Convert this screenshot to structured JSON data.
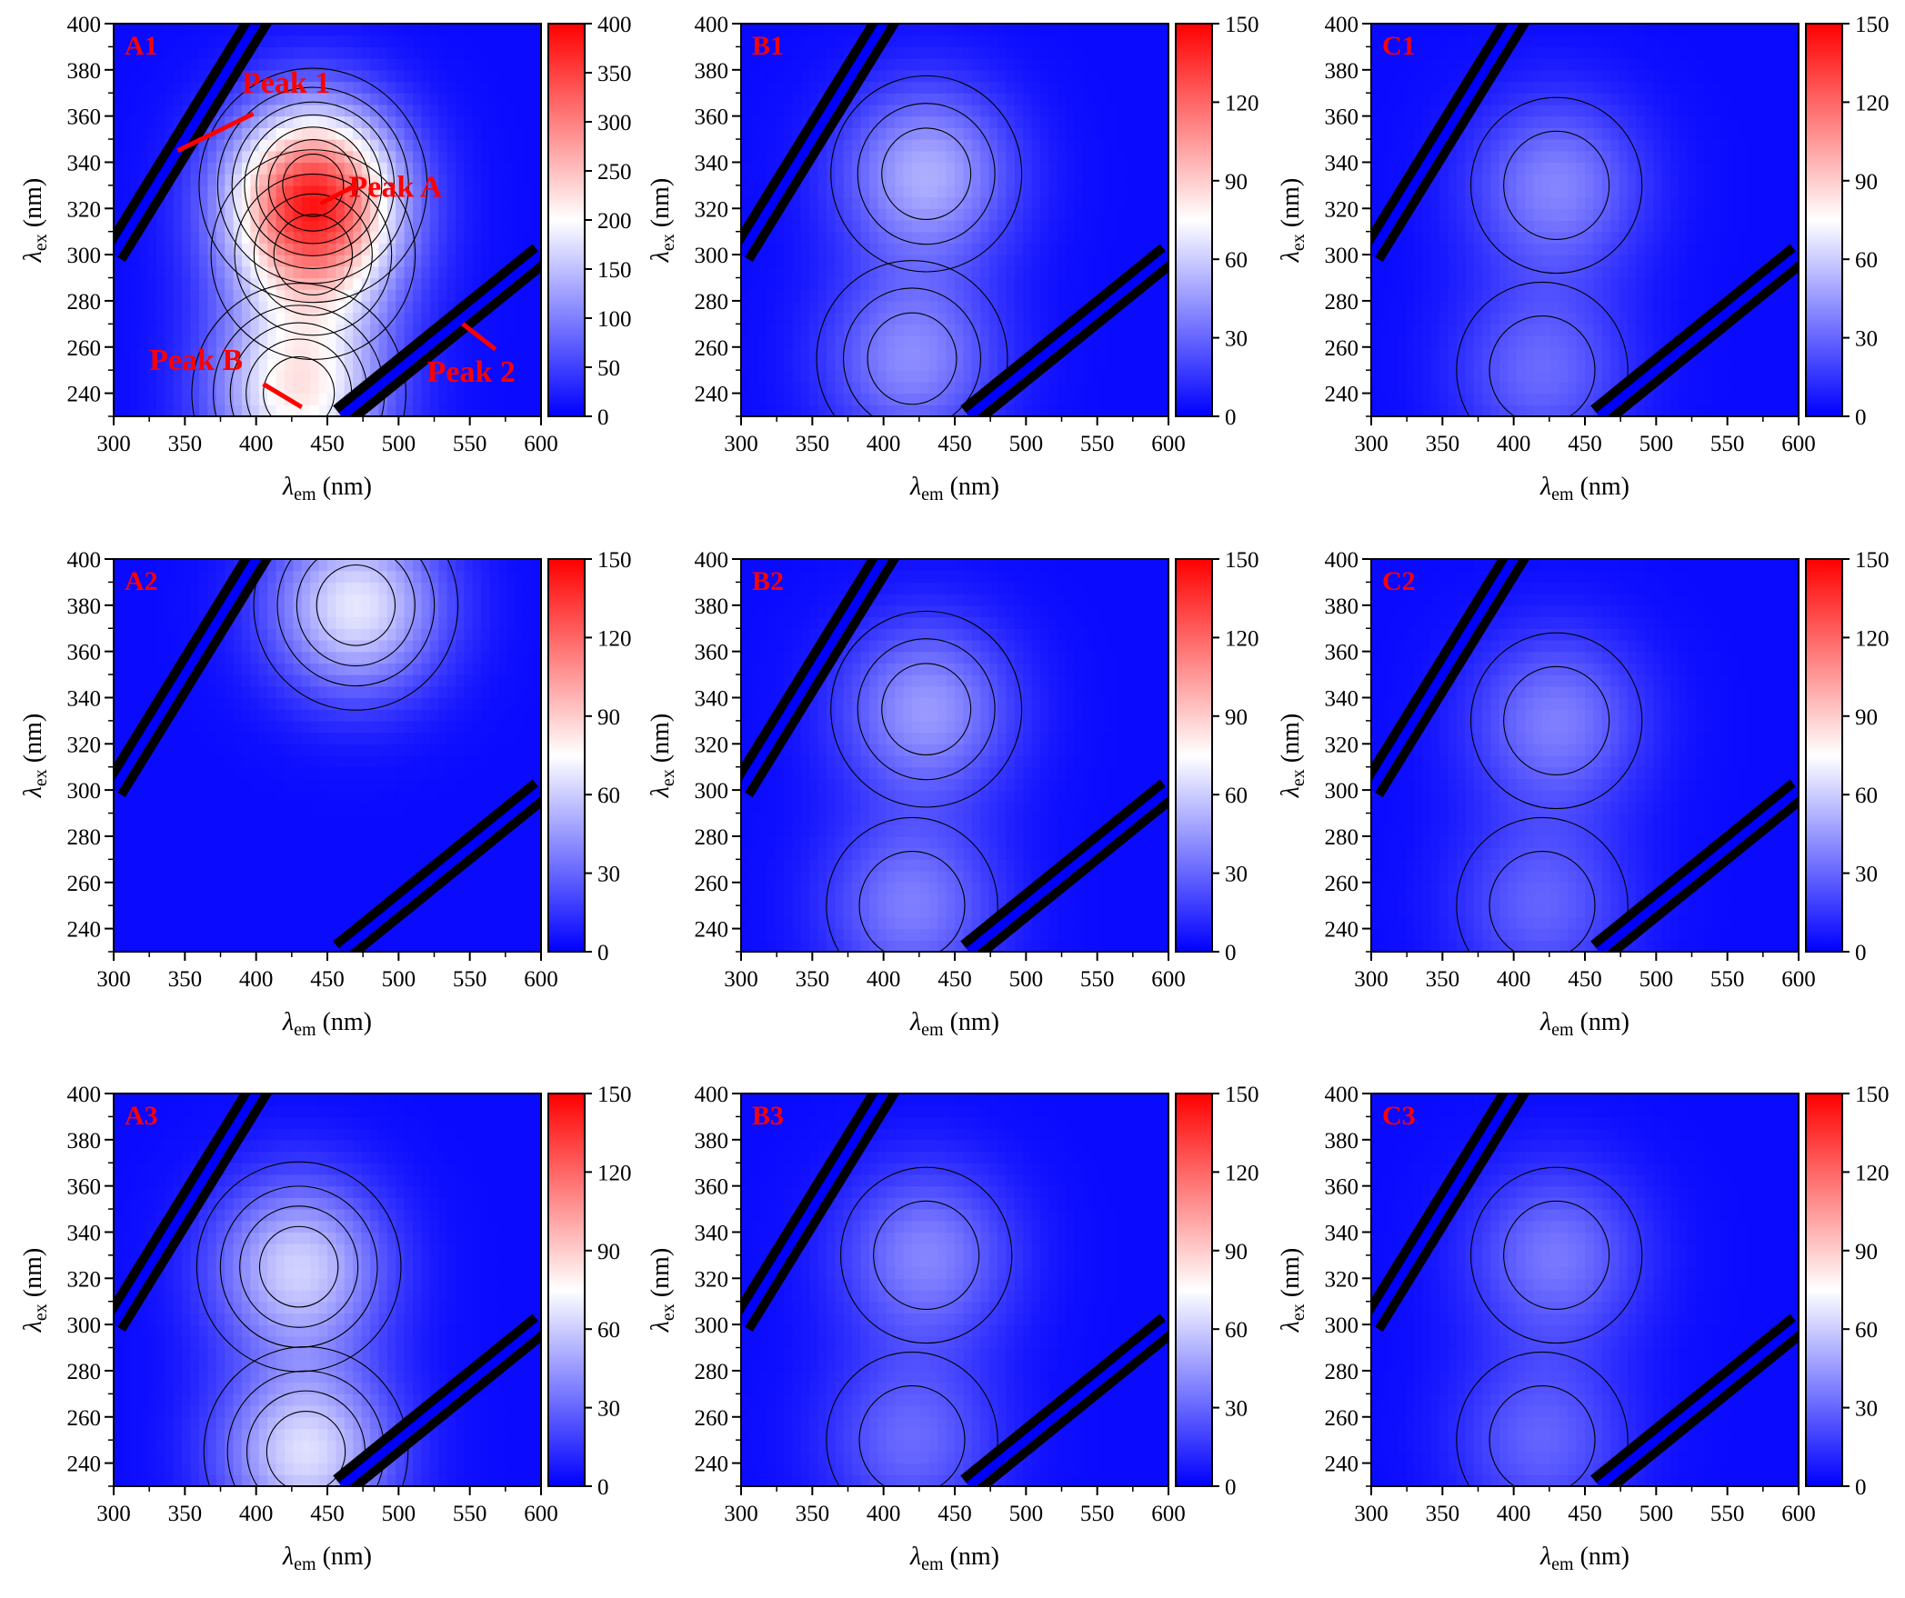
{
  "chart_data": [
    {
      "panel": "A1",
      "type": "heatmap",
      "xlabel": "λem (nm)",
      "ylabel": "λex (nm)",
      "xlim": [
        300,
        600
      ],
      "ylim": [
        230,
        400
      ],
      "xticks": [
        300,
        350,
        400,
        450,
        500,
        550,
        600
      ],
      "yticks": [
        240,
        260,
        280,
        300,
        320,
        340,
        360,
        380,
        400
      ],
      "colorbar": {
        "min": 0,
        "max": 400,
        "ticks": [
          0,
          50,
          100,
          150,
          200,
          250,
          300,
          350,
          400
        ]
      },
      "peaks": [
        {
          "em": 440,
          "ex": 330,
          "intensity": 280
        },
        {
          "em": 430,
          "ex": 240,
          "intensity": 200
        },
        {
          "em": 440,
          "ex": 300,
          "intensity": 150
        }
      ],
      "annotations": [
        {
          "text": "Peak 1",
          "x": 390,
          "y": 370,
          "x1": 398,
          "y1": 361,
          "x2": 345,
          "y2": 345
        },
        {
          "text": "Peak A",
          "x": 465,
          "y": 325,
          "x1": 470,
          "y1": 330,
          "x2": 445,
          "y2": 322
        },
        {
          "text": "Peak B",
          "x": 325,
          "y": 250,
          "x1": 405,
          "y1": 244,
          "x2": 432,
          "y2": 234
        },
        {
          "text": "Peak 2",
          "x": 520,
          "y": 245,
          "x1": 568,
          "y1": 259,
          "x2": 545,
          "y2": 270
        }
      ]
    },
    {
      "panel": "B1",
      "type": "heatmap",
      "xlabel": "λem (nm)",
      "ylabel": "λex (nm)",
      "xlim": [
        300,
        600
      ],
      "ylim": [
        230,
        400
      ],
      "xticks": [
        300,
        350,
        400,
        450,
        500,
        550,
        600
      ],
      "yticks": [
        240,
        260,
        280,
        300,
        320,
        340,
        360,
        380,
        400
      ],
      "colorbar": {
        "min": 0,
        "max": 150,
        "ticks": [
          0,
          30,
          60,
          90,
          120,
          150
        ]
      },
      "peaks": [
        {
          "em": 430,
          "ex": 335,
          "intensity": 48
        },
        {
          "em": 420,
          "ex": 255,
          "intensity": 38
        }
      ],
      "annotations": []
    },
    {
      "panel": "C1",
      "type": "heatmap",
      "xlabel": "λem (nm)",
      "ylabel": "λex (nm)",
      "xlim": [
        300,
        600
      ],
      "ylim": [
        230,
        400
      ],
      "xticks": [
        300,
        350,
        400,
        450,
        500,
        550,
        600
      ],
      "yticks": [
        240,
        260,
        280,
        300,
        320,
        340,
        360,
        380,
        400
      ],
      "colorbar": {
        "min": 0,
        "max": 150,
        "ticks": [
          0,
          30,
          60,
          90,
          120,
          150
        ]
      },
      "peaks": [
        {
          "em": 430,
          "ex": 330,
          "intensity": 36
        },
        {
          "em": 420,
          "ex": 250,
          "intensity": 28
        }
      ],
      "annotations": []
    },
    {
      "panel": "A2",
      "type": "heatmap",
      "xlabel": "λem (nm)",
      "ylabel": "λex (nm)",
      "xlim": [
        300,
        600
      ],
      "ylim": [
        230,
        400
      ],
      "xticks": [
        300,
        350,
        400,
        450,
        500,
        550,
        600
      ],
      "yticks": [
        240,
        260,
        280,
        300,
        320,
        340,
        360,
        380,
        400
      ],
      "colorbar": {
        "min": 0,
        "max": 150,
        "ticks": [
          0,
          30,
          60,
          90,
          120,
          150
        ]
      },
      "peaks": [
        {
          "em": 470,
          "ex": 380,
          "intensity": 65
        }
      ],
      "annotations": []
    },
    {
      "panel": "B2",
      "type": "heatmap",
      "xlabel": "λem (nm)",
      "ylabel": "λex (nm)",
      "xlim": [
        300,
        600
      ],
      "ylim": [
        230,
        400
      ],
      "xticks": [
        300,
        350,
        400,
        450,
        500,
        550,
        600
      ],
      "yticks": [
        240,
        260,
        280,
        300,
        320,
        340,
        360,
        380,
        400
      ],
      "colorbar": {
        "min": 0,
        "max": 150,
        "ticks": [
          0,
          30,
          60,
          90,
          120,
          150
        ]
      },
      "peaks": [
        {
          "em": 430,
          "ex": 335,
          "intensity": 42
        },
        {
          "em": 420,
          "ex": 250,
          "intensity": 34
        }
      ],
      "annotations": []
    },
    {
      "panel": "C2",
      "type": "heatmap",
      "xlabel": "λem (nm)",
      "ylabel": "λex (nm)",
      "xlim": [
        300,
        600
      ],
      "ylim": [
        230,
        400
      ],
      "xticks": [
        300,
        350,
        400,
        450,
        500,
        550,
        600
      ],
      "yticks": [
        240,
        260,
        280,
        300,
        320,
        340,
        360,
        380,
        400
      ],
      "colorbar": {
        "min": 0,
        "max": 150,
        "ticks": [
          0,
          30,
          60,
          90,
          120,
          150
        ]
      },
      "peaks": [
        {
          "em": 430,
          "ex": 330,
          "intensity": 34
        },
        {
          "em": 420,
          "ex": 250,
          "intensity": 26
        }
      ],
      "annotations": []
    },
    {
      "panel": "A3",
      "type": "heatmap",
      "xlabel": "λem (nm)",
      "ylabel": "λex (nm)",
      "xlim": [
        300,
        600
      ],
      "ylim": [
        230,
        400
      ],
      "xticks": [
        300,
        350,
        400,
        450,
        500,
        550,
        600
      ],
      "yticks": [
        240,
        260,
        280,
        300,
        320,
        340,
        360,
        380,
        400
      ],
      "colorbar": {
        "min": 0,
        "max": 150,
        "ticks": [
          0,
          30,
          60,
          90,
          120,
          150
        ]
      },
      "peaks": [
        {
          "em": 430,
          "ex": 325,
          "intensity": 58
        },
        {
          "em": 435,
          "ex": 245,
          "intensity": 62
        }
      ],
      "annotations": []
    },
    {
      "panel": "B3",
      "type": "heatmap",
      "xlabel": "λem (nm)",
      "ylabel": "λex (nm)",
      "xlim": [
        300,
        600
      ],
      "ylim": [
        230,
        400
      ],
      "xticks": [
        300,
        350,
        400,
        450,
        500,
        550,
        600
      ],
      "yticks": [
        240,
        260,
        280,
        300,
        320,
        340,
        360,
        380,
        400
      ],
      "colorbar": {
        "min": 0,
        "max": 150,
        "ticks": [
          0,
          30,
          60,
          90,
          120,
          150
        ]
      },
      "peaks": [
        {
          "em": 430,
          "ex": 330,
          "intensity": 36
        },
        {
          "em": 420,
          "ex": 250,
          "intensity": 28
        }
      ],
      "annotations": []
    },
    {
      "panel": "C3",
      "type": "heatmap",
      "xlabel": "λem (nm)",
      "ylabel": "λex (nm)",
      "xlim": [
        300,
        600
      ],
      "ylim": [
        230,
        400
      ],
      "xticks": [
        300,
        350,
        400,
        450,
        500,
        550,
        600
      ],
      "yticks": [
        240,
        260,
        280,
        300,
        320,
        340,
        360,
        380,
        400
      ],
      "colorbar": {
        "min": 0,
        "max": 150,
        "ticks": [
          0,
          30,
          60,
          90,
          120,
          150
        ]
      },
      "peaks": [
        {
          "em": 430,
          "ex": 330,
          "intensity": 32
        },
        {
          "em": 420,
          "ex": 250,
          "intensity": 26
        }
      ],
      "annotations": []
    }
  ],
  "colors": {
    "low": "#0000ff",
    "mid": "#ffffff",
    "high": "#ff0000",
    "scatter_band": "#000000",
    "label": "#ff0000"
  }
}
